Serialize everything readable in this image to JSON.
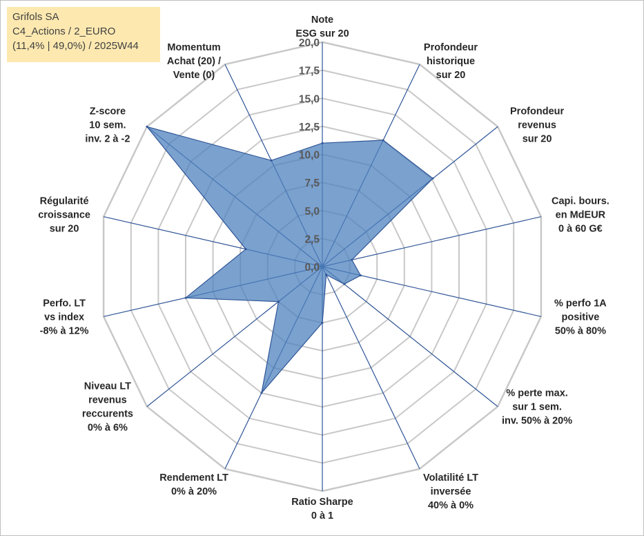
{
  "header": {
    "line1": "Grifols SA",
    "line2": "C4_Actions / 2_EURO",
    "line3": "(11,4% | 49,0%) / 2025W44"
  },
  "colors": {
    "grid": "#c8c8c8",
    "axis": "#2f5597",
    "fill": "#4f81bd",
    "title_bg": "#fde9b0"
  },
  "chart_data": {
    "type": "radar",
    "rmin": 0,
    "rmax": 20,
    "tick_step": 2.5,
    "tick_labels": [
      "0,0",
      "2,5",
      "5,0",
      "7,5",
      "10,0",
      "12,5",
      "15,0",
      "17,5",
      "20,0"
    ],
    "axes": [
      {
        "label": [
          "Note",
          "ESG sur 20"
        ],
        "value": 11
      },
      {
        "label": [
          "Profondeur",
          "historique",
          "sur 20"
        ],
        "value": 12.5
      },
      {
        "label": [
          "Profondeur",
          "revenus",
          "sur 20"
        ],
        "value": 12.6
      },
      {
        "label": [
          "Capi. bours.",
          "en MdEUR",
          "0 à 60 G€"
        ],
        "value": 2.7
      },
      {
        "label": [
          "% perfo 1A",
          "positive",
          "50% à 80%"
        ],
        "value": 3.5
      },
      {
        "label": [
          "% perte max.",
          "sur 1 sem.",
          "inv. 50% à 20%"
        ],
        "value": 2.5
      },
      {
        "label": [
          "Volatilité LT",
          "inversée",
          "40% à 0%"
        ],
        "value": 0.8
      },
      {
        "label": [
          "Ratio Sharpe",
          "0 à 1"
        ],
        "value": 5
      },
      {
        "label": [
          "Rendement LT",
          "0% à 20%"
        ],
        "value": 12.5
      },
      {
        "label": [
          "Niveau LT",
          "revenus",
          "reccurents",
          "0% à 6%"
        ],
        "value": 5
      },
      {
        "label": [
          "Perfo. LT",
          "vs index",
          "-8% à 12%"
        ],
        "value": 12.5
      },
      {
        "label": [
          "Régularité",
          "croissance",
          "sur 20"
        ],
        "value": 7
      },
      {
        "label": [
          "Z-score",
          "10 sem.",
          "inv. 2 à -2"
        ],
        "value": 20
      },
      {
        "label": [
          "Momentum",
          "Achat (20) /",
          "Vente (0)"
        ],
        "value": 10.5
      }
    ]
  }
}
